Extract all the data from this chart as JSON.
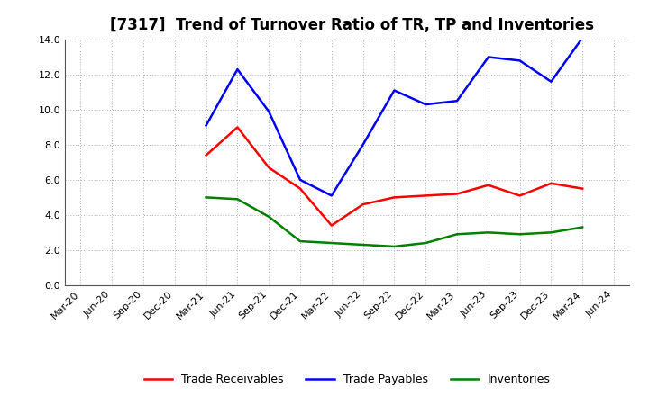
{
  "title": "[7317]  Trend of Turnover Ratio of TR, TP and Inventories",
  "x_labels": [
    "Mar-20",
    "Jun-20",
    "Sep-20",
    "Dec-20",
    "Mar-21",
    "Jun-21",
    "Sep-21",
    "Dec-21",
    "Mar-22",
    "Jun-22",
    "Sep-22",
    "Dec-22",
    "Mar-23",
    "Jun-23",
    "Sep-23",
    "Dec-23",
    "Mar-24",
    "Jun-24"
  ],
  "trade_receivables": [
    null,
    null,
    null,
    null,
    7.4,
    9.0,
    6.7,
    5.5,
    3.4,
    4.6,
    5.0,
    5.1,
    5.2,
    5.7,
    5.1,
    5.8,
    5.5,
    null
  ],
  "trade_payables": [
    null,
    null,
    null,
    null,
    9.1,
    12.3,
    9.9,
    6.0,
    5.1,
    8.0,
    11.1,
    10.3,
    10.5,
    13.0,
    12.8,
    11.6,
    14.1,
    null
  ],
  "inventories": [
    null,
    null,
    null,
    null,
    5.0,
    4.9,
    3.9,
    2.5,
    2.4,
    2.3,
    2.2,
    2.4,
    2.9,
    3.0,
    2.9,
    3.0,
    3.3,
    null
  ],
  "ylim": [
    0.0,
    14.0
  ],
  "yticks": [
    0.0,
    2.0,
    4.0,
    6.0,
    8.0,
    10.0,
    12.0,
    14.0
  ],
  "color_tr": "#ff0000",
  "color_tp": "#0000ff",
  "color_inv": "#008000",
  "background_color": "#ffffff",
  "grid_color": "#b0b0b0",
  "legend_tr": "Trade Receivables",
  "legend_tp": "Trade Payables",
  "legend_inv": "Inventories",
  "title_fontsize": 12,
  "label_fontsize": 8,
  "legend_fontsize": 9,
  "line_width": 1.8
}
